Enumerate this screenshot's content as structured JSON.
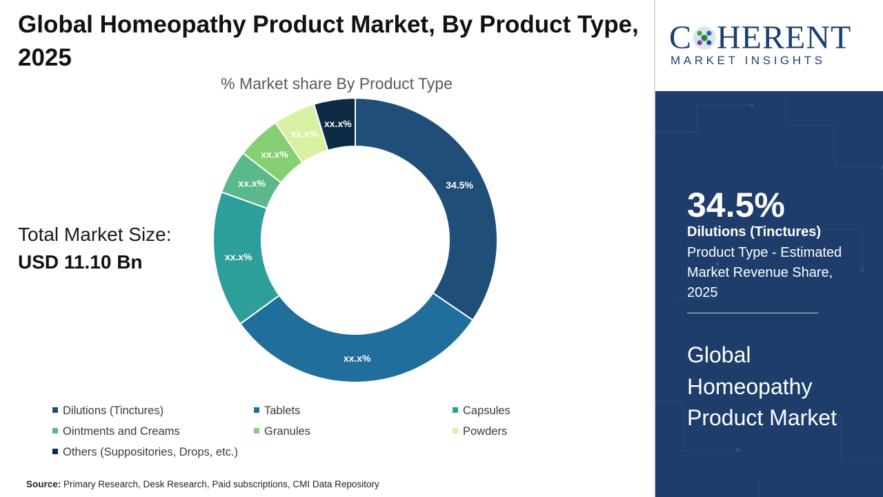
{
  "header": {
    "title": "Global Homeopathy Product Market, By Product Type, 2025"
  },
  "market_size": {
    "label": "Total Market Size:",
    "value": "USD 11.10 Bn"
  },
  "source": {
    "label": "Source:",
    "text": "Primary Research, Desk Research, Paid subscriptions, CMI Data Repository"
  },
  "logo": {
    "brand_prefix": "C",
    "brand_suffix": "HERENT",
    "tagline": "MARKET INSIGHTS"
  },
  "highlight": {
    "value": "34.5%",
    "segment": "Dilutions (Tinctures)",
    "description": "Product Type - Estimated Market Revenue Share, 2025",
    "market_name": "Global Homeopathy Product Market"
  },
  "chart_data": {
    "type": "pie",
    "subtype": "donut",
    "title": "% Market share By Product Type",
    "legend_position": "bottom",
    "slices": [
      {
        "name": "Dilutions (Tinctures)",
        "value": 34.5,
        "label": "34.5%",
        "color": "#1f4e79"
      },
      {
        "name": "Tablets",
        "value": 30.5,
        "label": "xx.x%",
        "color": "#1f6e9c"
      },
      {
        "name": "Capsules",
        "value": 15.5,
        "label": "xx.x%",
        "color": "#2e9e9a"
      },
      {
        "name": "Ointments and Creams",
        "value": 5.0,
        "label": "xx.x%",
        "color": "#5ab88a"
      },
      {
        "name": "Granules",
        "value": 5.0,
        "label": "xx.x%",
        "color": "#86cf72"
      },
      {
        "name": "Powders",
        "value": 4.8,
        "label": "xx.x%",
        "color": "#d8f0a2"
      },
      {
        "name": "Others (Suppositories, Drops, etc.)",
        "value": 4.7,
        "label": "xx.x%",
        "color": "#0d2b45"
      }
    ]
  }
}
